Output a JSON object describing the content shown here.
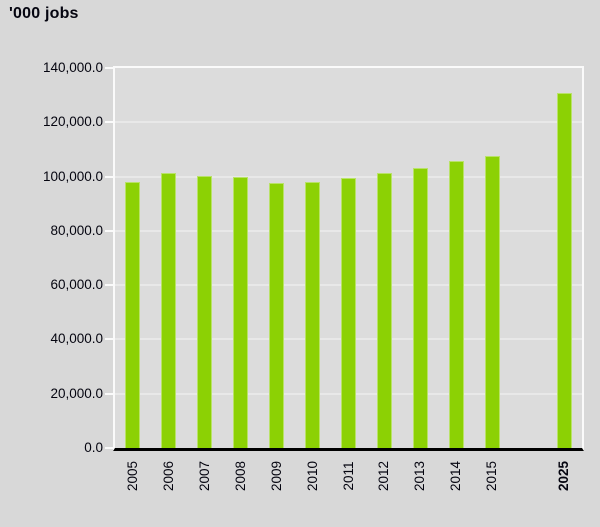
{
  "chart_data": {
    "type": "bar",
    "title": "'000 jobs",
    "unit": "'000 jobs",
    "categories": [
      "2005",
      "2006",
      "2007",
      "2008",
      "2009",
      "2010",
      "2011",
      "2012",
      "2013",
      "2014",
      "2015",
      "2025"
    ],
    "values": [
      97900,
      101400,
      100100,
      99900,
      97800,
      98000,
      99600,
      101300,
      103100,
      105600,
      107500,
      130700
    ],
    "xlabel": "",
    "ylabel": "'000 jobs",
    "ylim": [
      0,
      140000
    ],
    "ytick_step": 20000,
    "ytick_labels": [
      "0.0",
      "20,000.0",
      "40,000.0",
      "60,000.0",
      "80,000.0",
      "100,000.0",
      "120,000.0",
      "140,000.0"
    ],
    "grid": true,
    "legend": false,
    "gap_before_last_category": true,
    "emphasized_category": "2025",
    "colors": {
      "bar_fill": "#8CD104",
      "bar_border": "#B9E268",
      "page_background": "#D8D8D8",
      "plot_background": "#DCDCDC",
      "gridline": "#E8E8E8",
      "axis_highlight": "#FAFAFA",
      "axis_baseline": "#000000",
      "text": "#050510"
    }
  }
}
